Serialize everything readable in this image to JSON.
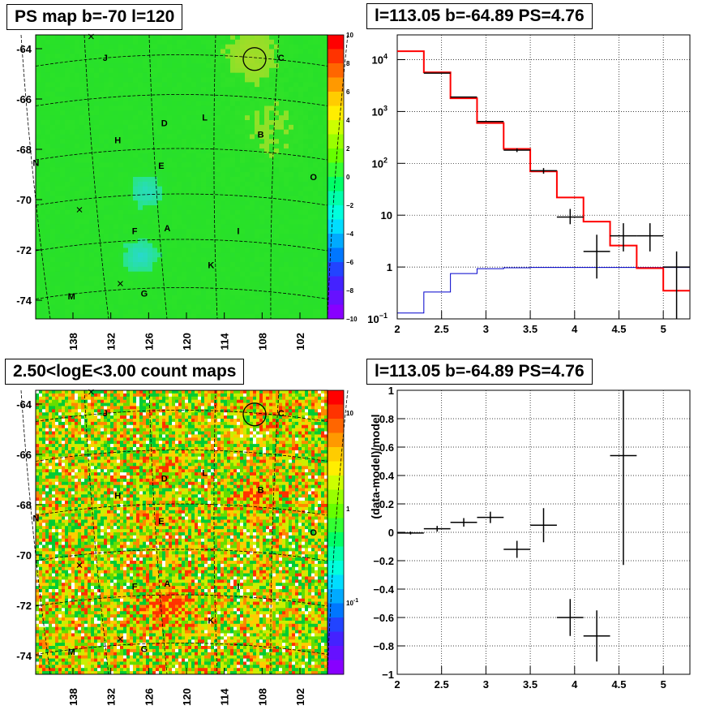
{
  "titles": {
    "map_ps": "PS map b=-70 l=120",
    "spectrum": "l=113.05 b=-64.89 PS=4.76",
    "count_map": "2.50<logE<3.00 count maps",
    "residual": "l=113.05 b=-64.89 PS=4.76"
  },
  "colors": {
    "data": "#000000",
    "model": "#ff0000",
    "background": "#0000cc",
    "circle": "#000000"
  },
  "chart_data": [
    {
      "type": "heatmap",
      "title": "PS map b=-70 l=120",
      "x_ticks": [
        "138",
        "132",
        "126",
        "120",
        "114",
        "108",
        "102"
      ],
      "y_ticks": [
        "-64",
        "-66",
        "-68",
        "-70",
        "-72",
        "-74"
      ],
      "colorbar": {
        "min": -10,
        "max": 10,
        "ticks": [
          "10",
          "8",
          "6",
          "4",
          "2",
          "0",
          "−2",
          "−4",
          "−6",
          "−8",
          "−10"
        ]
      },
      "regions": [
        "J",
        "C",
        "L",
        "D",
        "H",
        "B",
        "N",
        "E",
        "O",
        "F",
        "A",
        "I",
        "K",
        "M",
        "G"
      ],
      "circle_center": {
        "l": 113.05,
        "b": -64.89
      },
      "markers": "x"
    },
    {
      "type": "line",
      "title": "l=113.05 b=-64.89 PS=4.76",
      "x_range": [
        2,
        5.3
      ],
      "y_scale": "log",
      "y_range": [
        0.1,
        30000
      ],
      "x_ticks": [
        "2",
        "2.5",
        "3",
        "3.5",
        "4",
        "4.5",
        "5"
      ],
      "y_ticks": [
        "10¹",
        "10",
        "1",
        "10²",
        "10³",
        "10⁴"
      ],
      "y_tick_labels": {
        "1e-1": "10",
        "1e-1_exp": "−1",
        "1": "1",
        "10": "10",
        "1e2": "10",
        "1e2_exp": "2",
        "1e3": "10",
        "1e3_exp": "3",
        "1e4": "10",
        "1e4_exp": "4"
      },
      "bin_edges": [
        2.0,
        2.3,
        2.6,
        2.9,
        3.2,
        3.5,
        3.8,
        4.1,
        4.4,
        4.7,
        5.0,
        5.3
      ],
      "series": [
        {
          "key": "data",
          "points": [
            {
              "x": 2.45,
              "y": 5500
            },
            {
              "x": 2.75,
              "y": 1900
            },
            {
              "x": 3.05,
              "y": 640
            },
            {
              "x": 3.35,
              "y": 180,
              "err": 15
            },
            {
              "x": 3.65,
              "y": 72,
              "err": 9
            },
            {
              "x": 3.95,
              "y": 9.2,
              "err_lo": 2.5,
              "err_hi": 4.0
            },
            {
              "x": 4.25,
              "y": 2.0,
              "err_lo": 1.4,
              "err_hi": 2.2
            },
            {
              "x": 4.55,
              "y": 4.0,
              "err_lo": 2.0,
              "err_hi": 3.0
            },
            {
              "x": 4.85,
              "y": 4.0,
              "err_lo": 2.0,
              "err_hi": 3.0
            },
            {
              "x": 5.15,
              "y": 1.0,
              "err_lo": 0.9,
              "err_hi": 1.0
            }
          ]
        },
        {
          "key": "model",
          "values": [
            14500,
            5700,
            1800,
            600,
            190,
            70,
            22,
            7.5,
            2.6,
            0.95,
            0.35
          ]
        },
        {
          "key": "background",
          "values": [
            0.13,
            0.33,
            0.75,
            0.93,
            0.97,
            0.98,
            0.98,
            0.98,
            0.98,
            0.98,
            0.98
          ]
        }
      ]
    },
    {
      "type": "heatmap",
      "title": "2.50<logE<3.00 count maps",
      "x_ticks": [
        "138",
        "132",
        "126",
        "120",
        "114",
        "108",
        "102"
      ],
      "y_ticks": [
        "-64",
        "-66",
        "-68",
        "-70",
        "-72",
        "-74"
      ],
      "colorbar": {
        "scale": "log",
        "ticks": [
          "10",
          "1",
          "10"
        ],
        "exponents": [
          "",
          "",
          "-1"
        ]
      },
      "regions": [
        "J",
        "C",
        "L",
        "D",
        "H",
        "B",
        "N",
        "E",
        "O",
        "F",
        "A",
        "I",
        "K",
        "M",
        "G"
      ]
    },
    {
      "type": "scatter",
      "title": "l=113.05 b=-64.89 PS=4.76",
      "ylabel": "(data-model)/model",
      "x_range": [
        2,
        5.3
      ],
      "y_range": [
        -1,
        1
      ],
      "x_ticks": [
        "2",
        "2.5",
        "3",
        "3.5",
        "4",
        "4.5",
        "5"
      ],
      "y_ticks": [
        "1",
        "0.8",
        "0.6",
        "0.4",
        "0.2",
        "0",
        "−0.2",
        "−0.4",
        "−0.6",
        "−0.8",
        "−1"
      ],
      "points": [
        {
          "x": 2.15,
          "y": -0.005,
          "err": 0.01
        },
        {
          "x": 2.45,
          "y": 0.025,
          "err": 0.02
        },
        {
          "x": 2.75,
          "y": 0.07,
          "err": 0.03
        },
        {
          "x": 3.05,
          "y": 0.105,
          "err": 0.04
        },
        {
          "x": 3.35,
          "y": -0.12,
          "err": 0.06
        },
        {
          "x": 3.65,
          "y": 0.05,
          "err": 0.12
        },
        {
          "x": 3.95,
          "y": -0.6,
          "err": 0.13
        },
        {
          "x": 4.25,
          "y": -0.73,
          "err": 0.18
        },
        {
          "x": 4.55,
          "y": 0.54,
          "err_lo": 0.77,
          "err_hi": 0.5
        }
      ]
    }
  ]
}
